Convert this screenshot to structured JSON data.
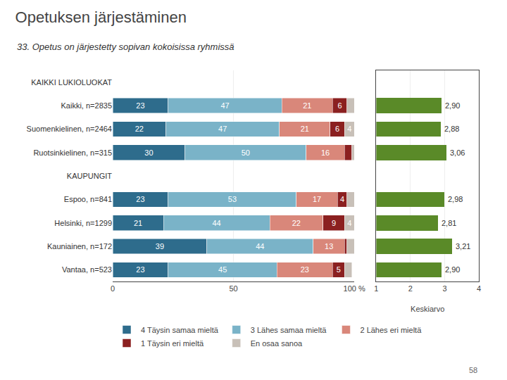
{
  "chart_data": [
    {
      "type": "bar",
      "orientation": "horizontal",
      "stacked": true,
      "title": "Opetuksen järjestäminen",
      "subtitle": "33. Opetus on järjestetty sopivan kokoisissa ryhmissä",
      "categories": [
        "KAIKKI LUKIOLUOKAT",
        "Kaikki, n=2835",
        "Suomenkielinen, n=2464",
        "Ruotsinkielinen, n=315",
        "KAUPUNGIT",
        "Espoo, n=841",
        "Helsinki, n=1299",
        "Kauniainen, n=172",
        "Vantaa, n=523"
      ],
      "series": [
        {
          "name": "4 Täysin samaa mieltä",
          "color": "#2e6c8c",
          "values": [
            null,
            23,
            22,
            30,
            null,
            23,
            21,
            39,
            23
          ],
          "value_labels": [
            null,
            "23",
            "22",
            "30",
            null,
            "23",
            "21",
            "39",
            "23"
          ]
        },
        {
          "name": "3 Lähes samaa mieltä",
          "color": "#7ab3c8",
          "values": [
            null,
            47,
            47,
            50,
            null,
            53,
            44,
            44,
            45
          ],
          "value_labels": [
            null,
            "47",
            "47",
            "50",
            null,
            "53",
            "44",
            "44",
            "45"
          ]
        },
        {
          "name": "2 Lähes eri mieltä",
          "color": "#d9877a",
          "values": [
            null,
            21,
            21,
            16,
            null,
            17,
            22,
            13,
            23
          ],
          "value_labels": [
            null,
            "21",
            "21",
            "16",
            null,
            "17",
            "22",
            "13",
            "23"
          ]
        },
        {
          "name": "1 Täysin eri mieltä",
          "color": "#8b2020",
          "values": [
            null,
            6,
            6,
            3,
            null,
            4,
            9,
            1,
            5
          ],
          "value_labels": [
            null,
            "6",
            "6",
            null,
            null,
            "4",
            "9",
            null,
            "5"
          ]
        },
        {
          "name": "En osaa sanoa",
          "color": "#c8c0b8",
          "values": [
            null,
            3,
            4,
            1,
            null,
            3,
            4,
            3,
            3
          ],
          "value_labels": [
            null,
            null,
            "4",
            null,
            null,
            null,
            "4",
            null,
            null
          ]
        }
      ],
      "xlim": [
        0,
        100
      ],
      "xticks": [
        0,
        50,
        {
          "value": 100,
          "label": "100 %"
        }
      ],
      "grid": true,
      "legend": "bottom",
      "data_labels": true,
      "annotations": [
        {
          "text": "58"
        }
      ]
    },
    {
      "type": "bar",
      "orientation": "horizontal",
      "categories": [
        "KAIKKI LUKIOLUOKAT",
        "Kaikki, n=2835",
        "Suomenkielinen, n=2464",
        "Ruotsinkielinen, n=315",
        "KAUPUNGIT",
        "Espoo, n=841",
        "Helsinki, n=1299",
        "Kauniainen, n=172",
        "Vantaa, n=523"
      ],
      "values": [
        null,
        2.9,
        2.88,
        3.06,
        null,
        2.98,
        2.81,
        3.21,
        2.9
      ],
      "value_labels": [
        null,
        "2,90",
        "2,88",
        "3,06",
        null,
        "2,98",
        "2,81",
        "3,21",
        "2,90"
      ],
      "color": "#5a8a28",
      "xlim": [
        1,
        4
      ],
      "xticks": [
        1,
        2,
        3,
        4
      ],
      "xlabel": "Keskiarvo",
      "grid": true,
      "data_labels": true,
      "tick_labels": "x"
    }
  ]
}
